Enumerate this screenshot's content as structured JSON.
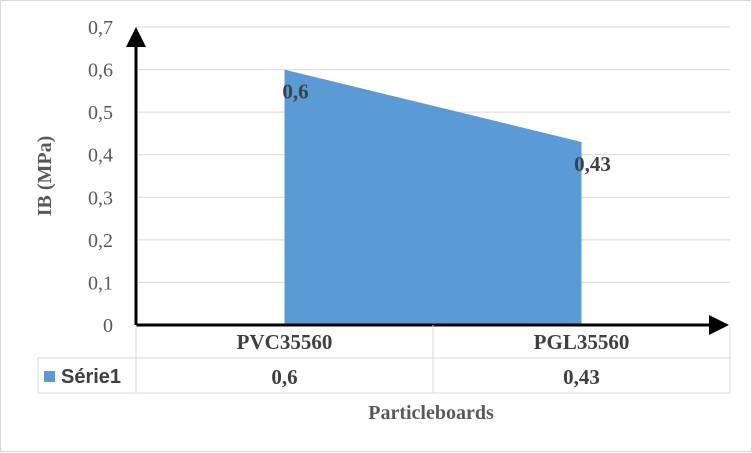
{
  "chart_data": {
    "type": "area",
    "categories": [
      "PVC35560",
      "PGL35560"
    ],
    "series": [
      {
        "name": "Série1",
        "values": [
          0.6,
          0.43
        ],
        "value_labels": [
          "0,6",
          "0,43"
        ]
      }
    ],
    "ylabel": "IB (MPa)",
    "xlabel": "Particleboards",
    "ylim": [
      0,
      0.7
    ],
    "y_ticks": [
      "0",
      "0,1",
      "0,2",
      "0,3",
      "0,4",
      "0,5",
      "0,6",
      "0,7"
    ],
    "grid": true,
    "data_table": true,
    "colors": {
      "series": "#5b9bd5",
      "grid": "#d9d9d9",
      "axis": "#000000"
    }
  }
}
